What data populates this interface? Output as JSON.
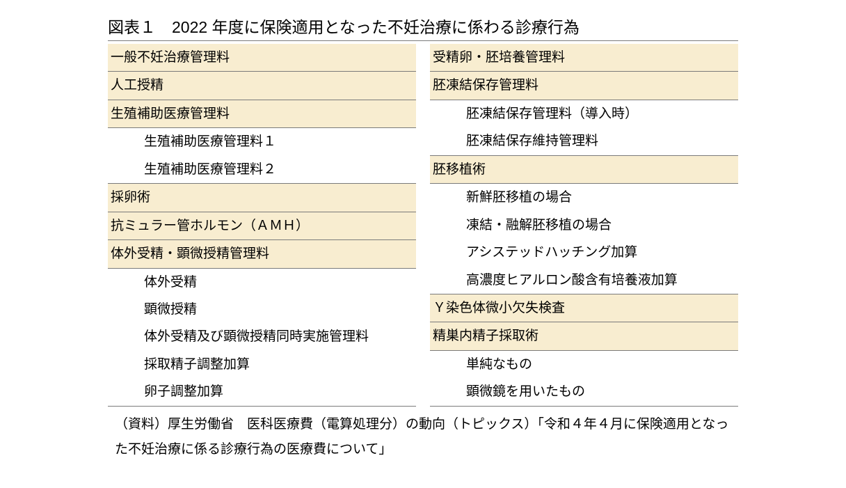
{
  "title": "図表１　2022 年度に保険適用となった不妊治療に係わる診療行為",
  "colors": {
    "header_bg": "#f8edd0",
    "border": "#7a7a7a",
    "text": "#000000",
    "background": "#ffffff"
  },
  "left": [
    {
      "label": "一般不妊治療管理料",
      "type": "header"
    },
    {
      "label": "人工授精",
      "type": "header"
    },
    {
      "label": "生殖補助医療管理料",
      "type": "header"
    },
    {
      "label": "生殖補助医療管理料１",
      "type": "sub",
      "noline": true
    },
    {
      "label": "生殖補助医療管理料２",
      "type": "sub"
    },
    {
      "label": "採卵術",
      "type": "header"
    },
    {
      "label": "抗ミュラー管ホルモン（ＡＭＨ）",
      "type": "header"
    },
    {
      "label": "体外受精・顕微授精管理料",
      "type": "header"
    },
    {
      "label": "体外受精",
      "type": "sub",
      "noline": true
    },
    {
      "label": "顕微授精",
      "type": "sub",
      "noline": true
    },
    {
      "label": "体外受精及び顕微授精同時実施管理料",
      "type": "sub",
      "noline": true
    },
    {
      "label": "採取精子調整加算",
      "type": "sub",
      "noline": true
    },
    {
      "label": "卵子調整加算",
      "type": "sub"
    }
  ],
  "right": [
    {
      "label": "受精卵・胚培養管理料",
      "type": "header"
    },
    {
      "label": "胚凍結保存管理料",
      "type": "header"
    },
    {
      "label": "胚凍結保存管理料（導入時）",
      "type": "sub",
      "noline": true
    },
    {
      "label": "胚凍結保存維持管理料",
      "type": "sub"
    },
    {
      "label": "胚移植術",
      "type": "header"
    },
    {
      "label": "新鮮胚移植の場合",
      "type": "sub",
      "noline": true
    },
    {
      "label": "凍結・融解胚移植の場合",
      "type": "sub",
      "noline": true
    },
    {
      "label": "アシステッドハッチング加算",
      "type": "sub",
      "noline": true
    },
    {
      "label": "高濃度ヒアルロン酸含有培養液加算",
      "type": "sub"
    },
    {
      "label": "Ｙ染色体微小欠失検査",
      "type": "header"
    },
    {
      "label": "精巣内精子採取術",
      "type": "header"
    },
    {
      "label": "単純なもの",
      "type": "sub",
      "noline": true
    },
    {
      "label": "顕微鏡を用いたもの",
      "type": "sub"
    }
  ],
  "source": "（資料）厚生労働省　医科医療費（電算処理分）の動向（トピックス）「令和４年４月に保険適用となった不妊治療に係る診療行為の医療費について」"
}
